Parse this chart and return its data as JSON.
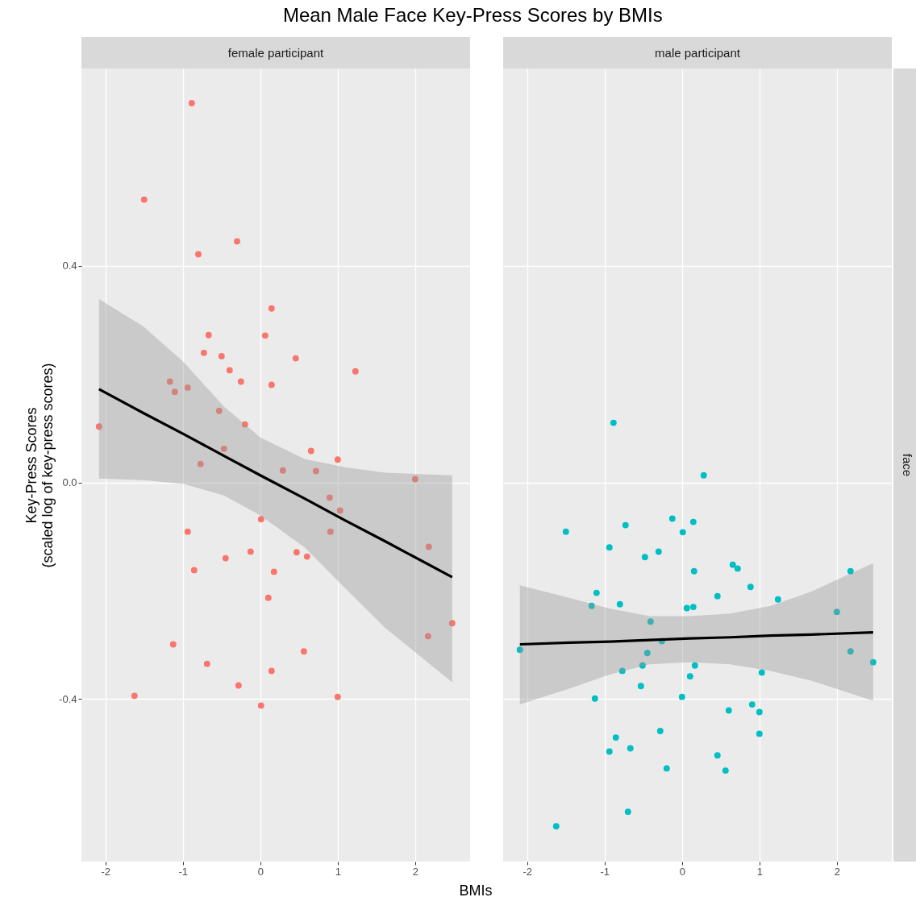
{
  "chart_data": [
    {
      "type": "scatter",
      "title": "Mean Male Face Key-Press Scores by BMIs",
      "subtitle": "female participant",
      "xlabel": "BMIs",
      "ylabel": "Key-Press Scores\n(scaled log of key-press scores)",
      "xlim": [
        -2.31,
        2.71
      ],
      "ylim": [
        -0.7,
        0.764
      ],
      "xticks": [
        -2,
        -1,
        0,
        1,
        2
      ],
      "yticks": [
        -0.4,
        {
          "value": 0,
          "label": "0.0"
        },
        0.4
      ],
      "grid": true,
      "series": [
        {
          "color": "#f8766d",
          "x": [
            -0.885,
            -1.5,
            -0.8,
            -0.3,
            0.146,
            -0.667,
            0.063,
            -0.729,
            -0.5,
            0.458,
            -0.396,
            1.229,
            -1.167,
            -0.25,
            0.146,
            -0.9375,
            -1.104,
            -0.531,
            -0.198,
            -2.083,
            -0.469,
            0.656,
            -0.771,
            1.0,
            0.292,
            0.719,
            2.0,
            0.896,
            1.031,
            0.01,
            -0.9375,
            0.906,
            2.177,
            -0.125,
            0.469,
            -0.448,
            0.604,
            -0.854,
            0.177,
            0.104,
            2.479,
            2.167,
            -1.125,
            0.563,
            -0.6875,
            0.146,
            -0.281,
            -1.625,
            1.0,
            0.01
          ],
          "values": [
            0.7,
            0.522,
            0.421,
            0.445,
            0.321,
            0.272,
            0.271,
            0.239,
            0.233,
            0.229,
            0.207,
            0.205,
            0.186,
            0.186,
            0.18,
            0.175,
            0.167,
            0.132,
            0.107,
            0.103,
            0.062,
            0.058,
            0.034,
            0.042,
            0.022,
            0.021,
            0.006,
            -0.028,
            -0.052,
            -0.068,
            -0.091,
            -0.091,
            -0.119,
            -0.128,
            -0.129,
            -0.14,
            -0.137,
            -0.162,
            -0.165,
            -0.213,
            -0.26,
            -0.284,
            -0.299,
            -0.312,
            -0.335,
            -0.348,
            -0.375,
            -0.394,
            -0.396,
            -0.412
          ]
        },
        {
          "type": "line",
          "color": "#000000",
          "x": [
            -2.083,
            -1.51,
            -0.99,
            -0.469,
            0,
            0.573,
            1.094,
            1.615,
            2.479
          ],
          "values": [
            0.172,
            0.128,
            0.089,
            0.049,
            0.013,
            -0.03,
            -0.07,
            -0.109,
            -0.175
          ],
          "lower": [
            0.007,
            0.004,
            -0.003,
            -0.024,
            -0.061,
            -0.12,
            -0.195,
            -0.269,
            -0.369
          ],
          "upper": [
            0.338,
            0.288,
            0.222,
            0.14,
            0.083,
            0.043,
            0.028,
            0.018,
            0.013
          ]
        }
      ]
    },
    {
      "type": "scatter",
      "subtitle": "male participant",
      "annotations": [
        "face"
      ],
      "xlim": [
        -2.31,
        2.71
      ],
      "ylim": [
        -0.7,
        0.764
      ],
      "xticks": [
        -2,
        -1,
        0,
        1,
        2
      ],
      "yticks": [
        -0.4,
        0,
        0.4
      ],
      "grid": true,
      "tick_labels": "x",
      "series": [
        {
          "color": "#00bfc4",
          "x": [
            -0.885,
            0.281,
            -0.125,
            0.146,
            -0.729,
            -1.5,
            0.01,
            -0.9375,
            -0.302,
            -0.479,
            0.656,
            0.719,
            2.177,
            0.156,
            -1.104,
            0.458,
            0.885,
            1.24,
            -1.167,
            -0.802,
            0.146,
            0.0625,
            2.0,
            -0.406,
            -2.094,
            2.177,
            -0.448,
            -0.26,
            2.469,
            -0.51,
            0.167,
            -0.771,
            1.031,
            0.104,
            -0.531,
            -1.125,
            0.0,
            0.906,
            0.604,
            1.0,
            -0.281,
            -0.854,
            1.0,
            -0.9375,
            -0.667,
            0.458,
            -0.198,
            0.5625,
            -0.698,
            -1.625
          ],
          "values": [
            0.11,
            0.013,
            -0.067,
            -0.073,
            -0.079,
            -0.091,
            -0.092,
            -0.12,
            -0.128,
            -0.138,
            -0.152,
            -0.159,
            -0.164,
            -0.164,
            -0.204,
            -0.21,
            -0.193,
            -0.216,
            -0.228,
            -0.225,
            -0.23,
            -0.232,
            -0.239,
            -0.257,
            -0.309,
            -0.312,
            -0.315,
            -0.293,
            -0.332,
            -0.338,
            -0.338,
            -0.348,
            -0.351,
            -0.358,
            -0.376,
            -0.399,
            -0.396,
            -0.41,
            -0.421,
            -0.424,
            -0.459,
            -0.471,
            -0.464,
            -0.497,
            -0.491,
            -0.504,
            -0.528,
            -0.532,
            -0.608,
            -0.635
          ]
        },
        {
          "type": "line",
          "color": "#000000",
          "x": [
            -2.094,
            -1.458,
            -0.9375,
            -0.417,
            0.104,
            0.625,
            1.146,
            1.667,
            2.469
          ],
          "values": [
            -0.299,
            -0.296,
            -0.294,
            -0.291,
            -0.288,
            -0.286,
            -0.283,
            -0.281,
            -0.277
          ],
          "lower": [
            -0.41,
            -0.381,
            -0.355,
            -0.336,
            -0.332,
            -0.336,
            -0.348,
            -0.366,
            -0.403
          ],
          "upper": [
            -0.19,
            -0.213,
            -0.233,
            -0.247,
            -0.247,
            -0.242,
            -0.228,
            -0.202,
            -0.149
          ]
        }
      ]
    }
  ]
}
